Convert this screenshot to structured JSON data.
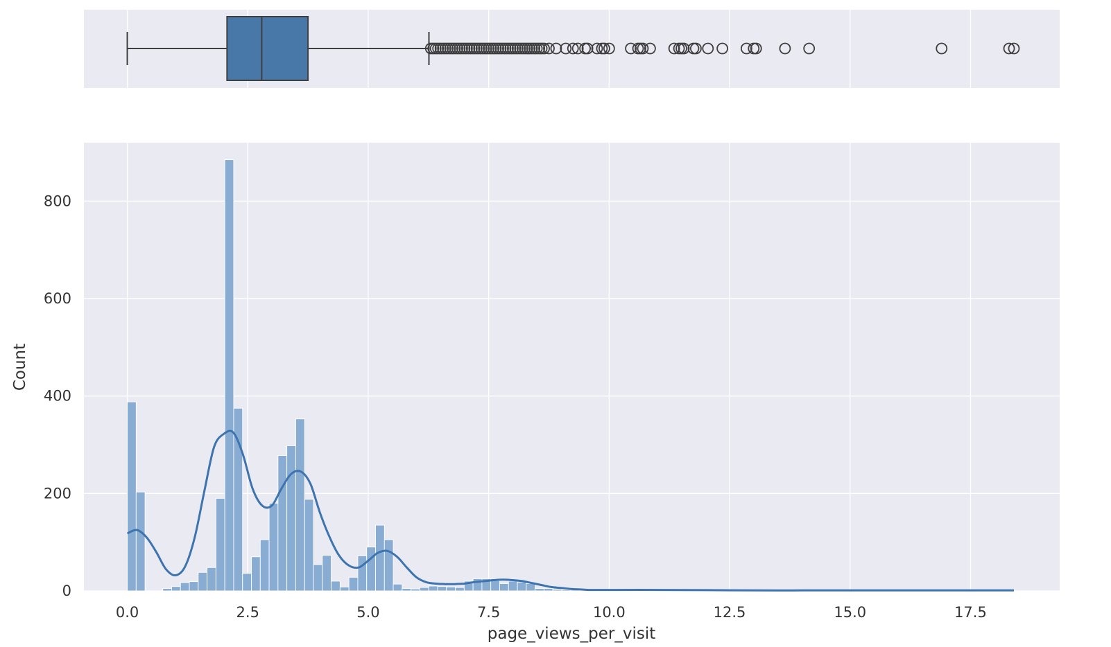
{
  "chart_data": [
    {
      "type": "box",
      "orientation": "horizontal",
      "color": "#4878a8",
      "xlim": [
        -0.9,
        19.35
      ],
      "whisker_low": 0.0,
      "q1": 2.07,
      "median": 2.79,
      "q3": 3.75,
      "whisker_high": 6.26,
      "outliers": [
        6.3,
        6.35,
        6.4,
        6.45,
        6.5,
        6.55,
        6.6,
        6.65,
        6.7,
        6.75,
        6.8,
        6.85,
        6.9,
        6.95,
        7.0,
        7.05,
        7.1,
        7.15,
        7.2,
        7.25,
        7.3,
        7.35,
        7.4,
        7.45,
        7.5,
        7.55,
        7.6,
        7.65,
        7.7,
        7.75,
        7.8,
        7.85,
        7.9,
        7.95,
        8.0,
        8.05,
        8.1,
        8.15,
        8.2,
        8.25,
        8.3,
        8.35,
        8.4,
        8.45,
        8.5,
        8.55,
        8.6,
        8.65,
        8.75,
        8.9,
        9.1,
        9.25,
        9.35,
        9.5,
        9.55,
        9.75,
        9.85,
        9.9,
        10.0,
        10.45,
        10.6,
        10.65,
        10.7,
        10.85,
        11.35,
        11.45,
        11.5,
        11.55,
        11.75,
        11.8,
        12.05,
        12.35,
        12.85,
        13.0,
        13.05,
        13.65,
        14.15,
        16.9,
        18.3,
        18.4
      ]
    },
    {
      "type": "histogram",
      "color": "#4878a8",
      "xlabel": "page_views_per_visit",
      "ylabel": "Count",
      "xlim": [
        -0.9,
        19.35
      ],
      "ylim": [
        0,
        920
      ],
      "xticks": [
        "0.0",
        "2.5",
        "5.0",
        "7.5",
        "10.0",
        "12.5",
        "15.0",
        "17.5"
      ],
      "xtick_values": [
        0.0,
        2.5,
        5.0,
        7.5,
        10.0,
        12.5,
        15.0,
        17.5
      ],
      "yticks": [
        "0",
        "200",
        "400",
        "600",
        "800"
      ],
      "ytick_values": [
        0,
        200,
        400,
        600,
        800
      ],
      "grid": true,
      "bin_start": 0.0,
      "bin_width": 0.184,
      "counts": [
        388,
        203,
        0,
        0,
        5,
        9,
        17,
        19,
        38,
        48,
        190,
        885,
        375,
        36,
        70,
        105,
        180,
        278,
        298,
        353,
        188,
        54,
        73,
        20,
        8,
        28,
        72,
        90,
        135,
        105,
        14,
        5,
        4,
        7,
        10,
        9,
        8,
        7,
        20,
        25,
        25,
        21,
        15,
        20,
        18,
        15,
        5,
        5,
        3,
        2,
        2,
        1,
        1,
        1,
        1,
        0,
        1,
        1,
        1,
        1,
        0,
        1,
        1,
        0,
        0,
        1,
        0,
        0,
        1,
        1,
        0,
        0,
        0,
        0,
        1,
        0,
        0,
        1,
        0,
        0,
        0,
        0,
        0,
        0,
        0,
        0,
        0,
        0,
        0,
        0,
        0,
        0,
        1,
        0,
        0,
        0,
        0,
        0,
        0,
        2
      ],
      "kde": {
        "x": [
          0.0,
          0.2,
          0.4,
          0.6,
          0.8,
          1.0,
          1.2,
          1.4,
          1.6,
          1.8,
          2.0,
          2.2,
          2.4,
          2.6,
          2.8,
          3.0,
          3.2,
          3.4,
          3.6,
          3.8,
          4.0,
          4.2,
          4.4,
          4.6,
          4.8,
          5.0,
          5.2,
          5.4,
          5.6,
          5.8,
          6.0,
          6.2,
          6.4,
          6.6,
          6.8,
          7.0,
          7.2,
          7.4,
          7.6,
          7.8,
          8.0,
          8.2,
          8.4,
          8.6,
          8.8,
          9.0,
          9.2,
          9.4,
          9.6,
          9.8,
          10.0,
          11.0,
          12.0,
          13.0,
          14.0,
          15.0,
          16.0,
          17.0,
          18.0,
          18.4
        ],
        "y": [
          118,
          125,
          110,
          80,
          45,
          32,
          50,
          110,
          205,
          295,
          322,
          325,
          280,
          210,
          175,
          175,
          210,
          240,
          245,
          220,
          160,
          110,
          72,
          52,
          48,
          62,
          78,
          82,
          70,
          48,
          28,
          18,
          15,
          14,
          14,
          15,
          18,
          20,
          22,
          23,
          22,
          20,
          16,
          12,
          8,
          6,
          4,
          3,
          2,
          2,
          2,
          2,
          1.5,
          1,
          1,
          1,
          1,
          1,
          1,
          1
        ]
      }
    }
  ]
}
